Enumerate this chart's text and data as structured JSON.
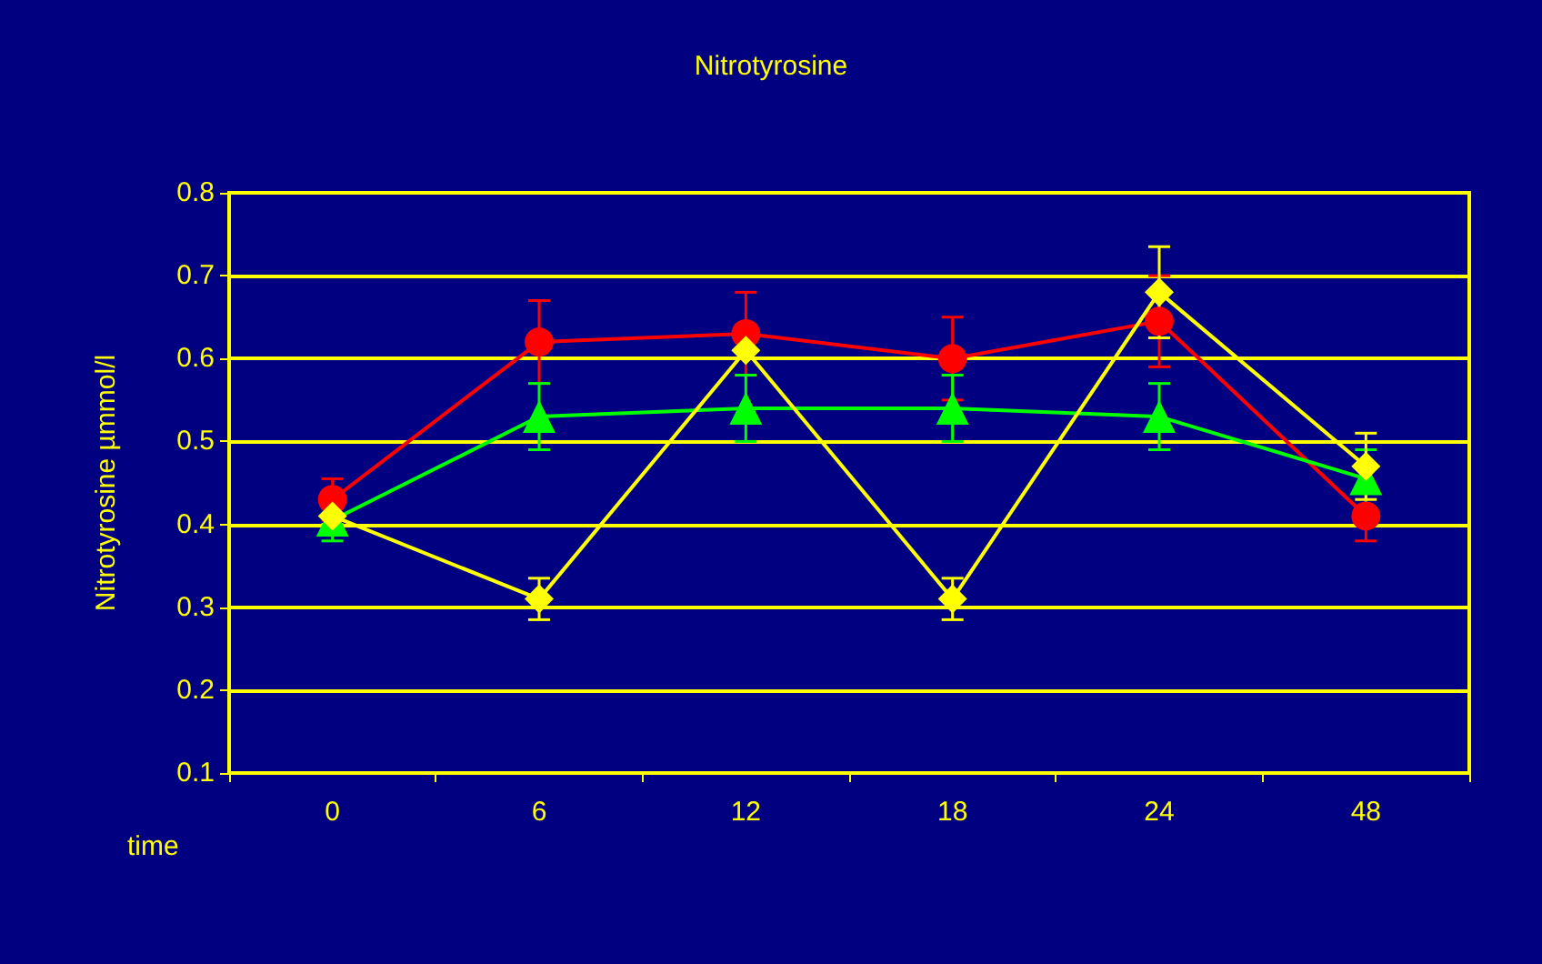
{
  "chart_data": {
    "type": "line",
    "title": "Nitrotyrosine",
    "xlabel": "time",
    "ylabel": "Nitrotyrosine µmmol/l",
    "categories": [
      "0",
      "6",
      "12",
      "18",
      "24",
      "48"
    ],
    "series": [
      {
        "color": "#ff0000",
        "marker": "circle",
        "values": [
          0.43,
          0.62,
          0.63,
          0.6,
          0.645,
          0.41
        ],
        "errors": [
          0.025,
          0.05,
          0.05,
          0.05,
          0.055,
          0.03
        ]
      },
      {
        "color": "#00ff00",
        "marker": "triangle",
        "values": [
          0.405,
          0.53,
          0.54,
          0.54,
          0.53,
          0.455
        ],
        "errors": [
          0.025,
          0.04,
          0.04,
          0.04,
          0.04,
          0.035
        ]
      },
      {
        "color": "#ffff00",
        "marker": "diamond",
        "values": [
          0.41,
          0.31,
          0.61,
          0.31,
          0.68,
          0.47
        ],
        "errors": [
          0.01,
          0.025,
          0.01,
          0.025,
          0.055,
          0.04
        ]
      }
    ],
    "ylim": [
      0.1,
      0.8
    ],
    "yticks": [
      0.1,
      0.2,
      0.3,
      0.4,
      0.5,
      0.6,
      0.7,
      0.8
    ],
    "grid": "y"
  }
}
